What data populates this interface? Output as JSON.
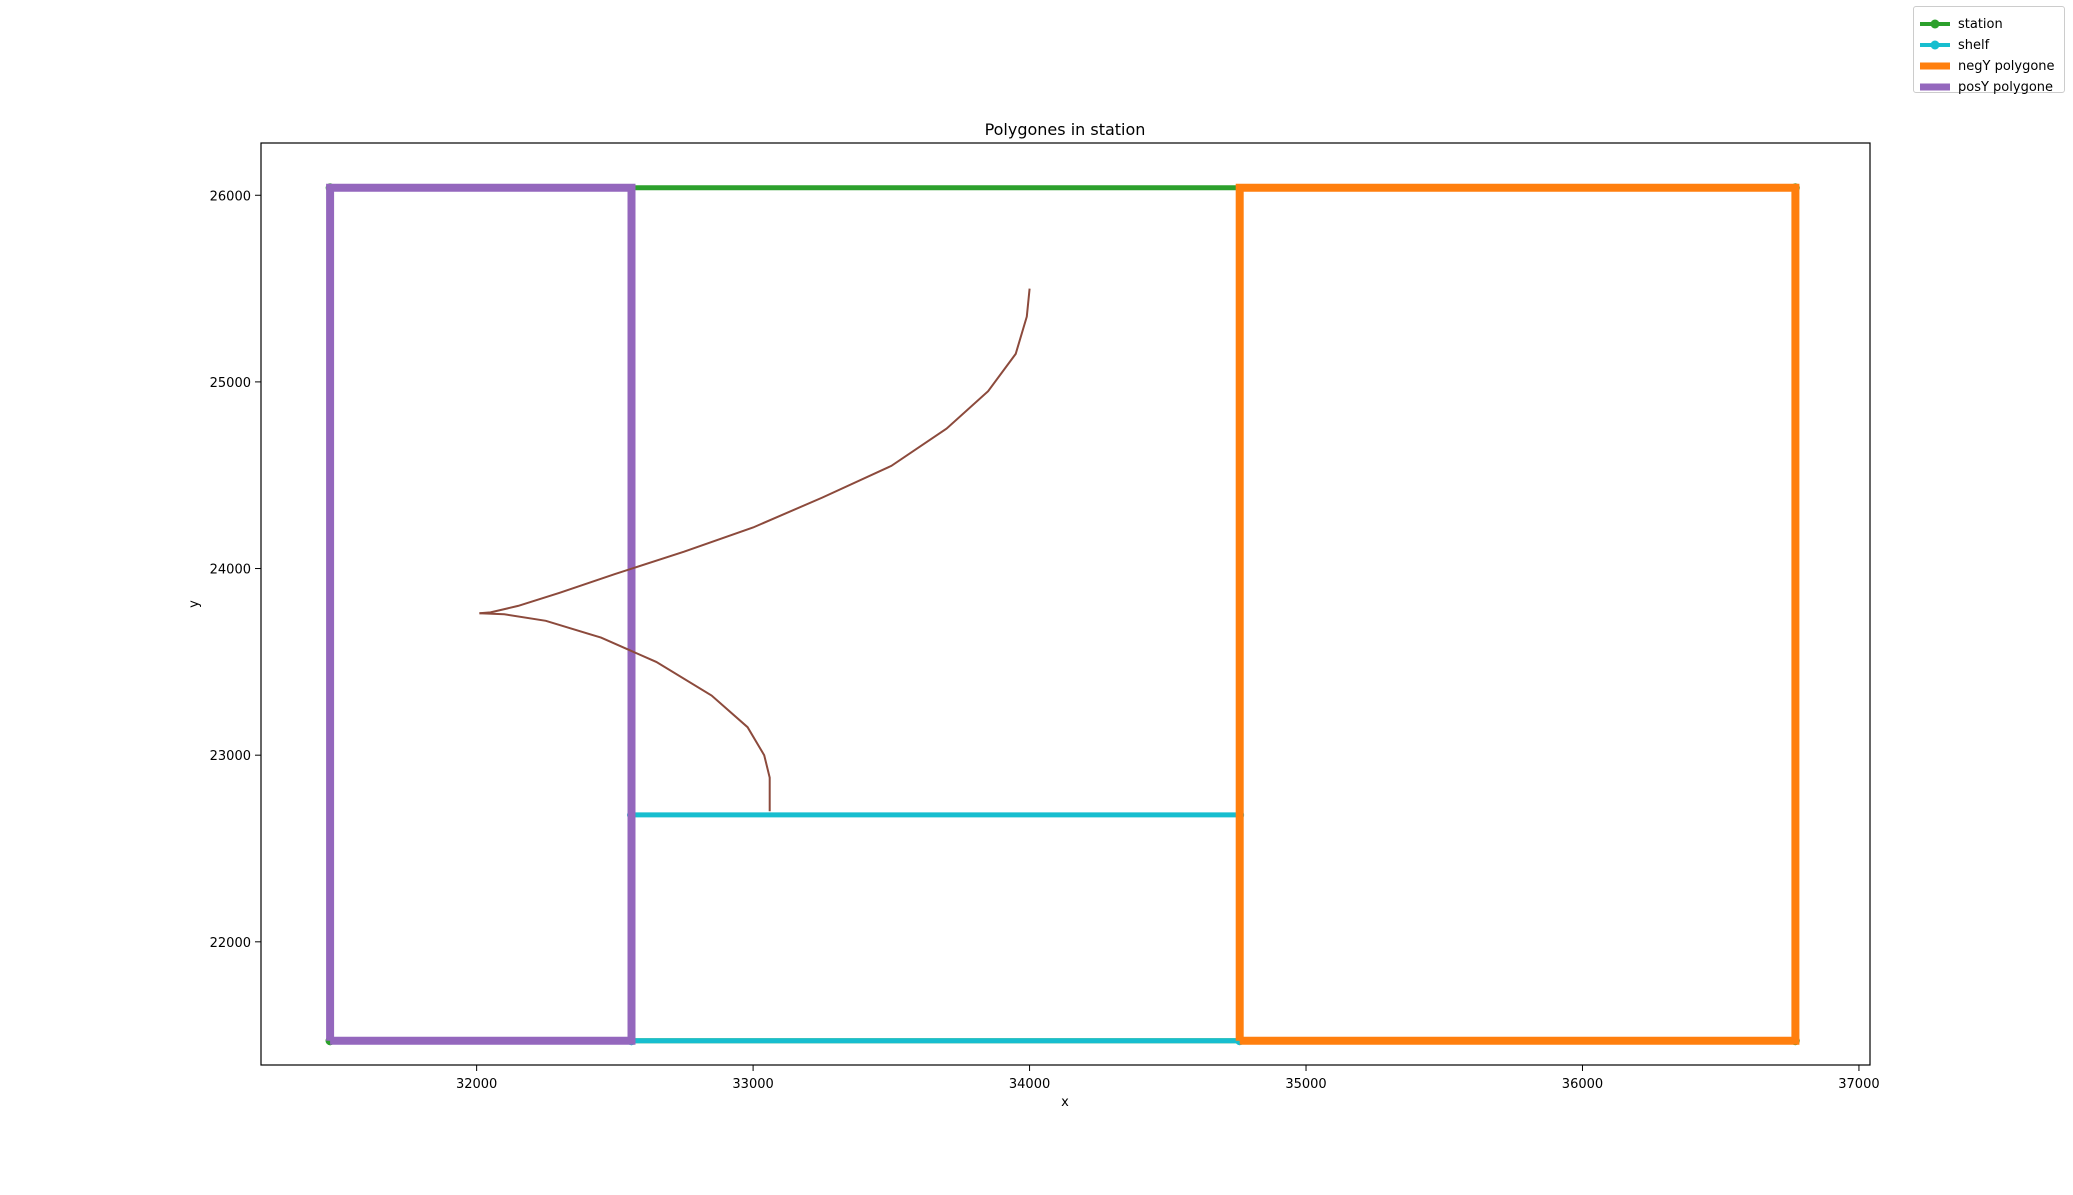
{
  "chart_data": {
    "type": "line",
    "title": "Polygones in station",
    "xlabel": "x",
    "ylabel": "y",
    "xlim": [
      31220,
      37040
    ],
    "ylim": [
      21340,
      26280
    ],
    "xticks": [
      32000,
      33000,
      34000,
      35000,
      36000,
      37000
    ],
    "yticks": [
      22000,
      23000,
      24000,
      25000,
      26000
    ],
    "grid": false,
    "legend_position": "top-right (outside axes)",
    "series": [
      {
        "name": "station",
        "color": "#2ca02c",
        "marker": "circle",
        "x": [
          31470,
          36770,
          36770,
          31470,
          31470
        ],
        "y": [
          21470,
          21470,
          26040,
          26040,
          21470
        ]
      },
      {
        "name": "shelf",
        "color": "#17becf",
        "marker": "circle",
        "x": [
          32560,
          34760,
          34760,
          32560,
          32560
        ],
        "y": [
          21470,
          21470,
          22680,
          22680,
          21470
        ]
      },
      {
        "name": "negY polygone",
        "color": "#ff7f0e",
        "marker": "none",
        "x": [
          34760,
          36770,
          36770,
          34760,
          34760
        ],
        "y": [
          21470,
          21470,
          26040,
          26040,
          21470
        ]
      },
      {
        "name": "posY polygone",
        "color": "#9467bd",
        "marker": "none",
        "x": [
          31470,
          32560,
          32560,
          31470,
          31470
        ],
        "y": [
          21470,
          21470,
          26040,
          26040,
          21470
        ]
      },
      {
        "color": "#8c4a3c",
        "marker": "none",
        "x": [
          34000,
          33990,
          33950,
          33850,
          33700,
          33500,
          33250,
          33000,
          32750,
          32500,
          32300,
          32150,
          32050,
          32010
        ],
        "y": [
          25500,
          25350,
          25150,
          24950,
          24750,
          24550,
          24380,
          24220,
          24090,
          23970,
          23870,
          23800,
          23765,
          23760
        ]
      },
      {
        "color": "#8c4a3c",
        "marker": "none",
        "x": [
          32010,
          32100,
          32250,
          32450,
          32650,
          32850,
          32980,
          33040,
          33060,
          33060
        ],
        "y": [
          23760,
          23755,
          23720,
          23630,
          23500,
          23320,
          23150,
          23000,
          22880,
          22700
        ]
      }
    ]
  }
}
